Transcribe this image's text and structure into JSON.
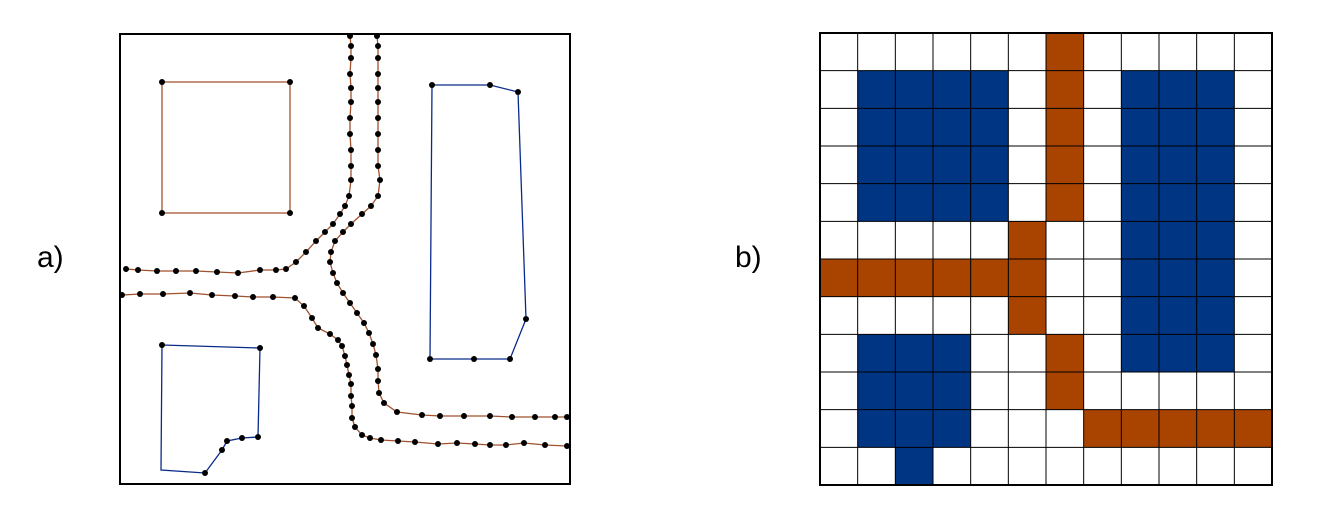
{
  "panels": {
    "a": {
      "label": "a)"
    },
    "b": {
      "label": "b)"
    }
  },
  "colors": {
    "road": "#a0522d",
    "building_outline": "#0a2a8a",
    "vertex": "#000000",
    "frame": "#000000",
    "road_cell": "#a84300",
    "building_cell": "#003583",
    "empty_cell": "#ffffff",
    "grid_line": "#000000"
  },
  "raster": {
    "rows": 12,
    "cols": 12,
    "legend_codes": {
      "0": "empty",
      "1": "building",
      "2": "road"
    },
    "cells": [
      [
        0,
        0,
        0,
        0,
        0,
        0,
        2,
        0,
        0,
        0,
        0,
        0
      ],
      [
        0,
        1,
        1,
        1,
        1,
        0,
        2,
        0,
        1,
        1,
        1,
        0
      ],
      [
        0,
        1,
        1,
        1,
        1,
        0,
        2,
        0,
        1,
        1,
        1,
        0
      ],
      [
        0,
        1,
        1,
        1,
        1,
        0,
        2,
        0,
        1,
        1,
        1,
        0
      ],
      [
        0,
        1,
        1,
        1,
        1,
        0,
        2,
        0,
        1,
        1,
        1,
        0
      ],
      [
        0,
        0,
        0,
        0,
        0,
        2,
        0,
        0,
        1,
        1,
        1,
        0
      ],
      [
        2,
        2,
        2,
        2,
        2,
        2,
        0,
        0,
        1,
        1,
        1,
        0
      ],
      [
        0,
        0,
        0,
        0,
        0,
        2,
        0,
        0,
        1,
        1,
        1,
        0
      ],
      [
        0,
        1,
        1,
        1,
        0,
        0,
        2,
        0,
        1,
        1,
        1,
        0
      ],
      [
        0,
        1,
        1,
        1,
        0,
        0,
        2,
        0,
        0,
        0,
        0,
        0
      ],
      [
        0,
        1,
        1,
        1,
        0,
        0,
        0,
        2,
        2,
        2,
        2,
        2
      ],
      [
        0,
        0,
        1,
        0,
        0,
        0,
        0,
        0,
        0,
        0,
        0,
        0
      ]
    ]
  }
}
